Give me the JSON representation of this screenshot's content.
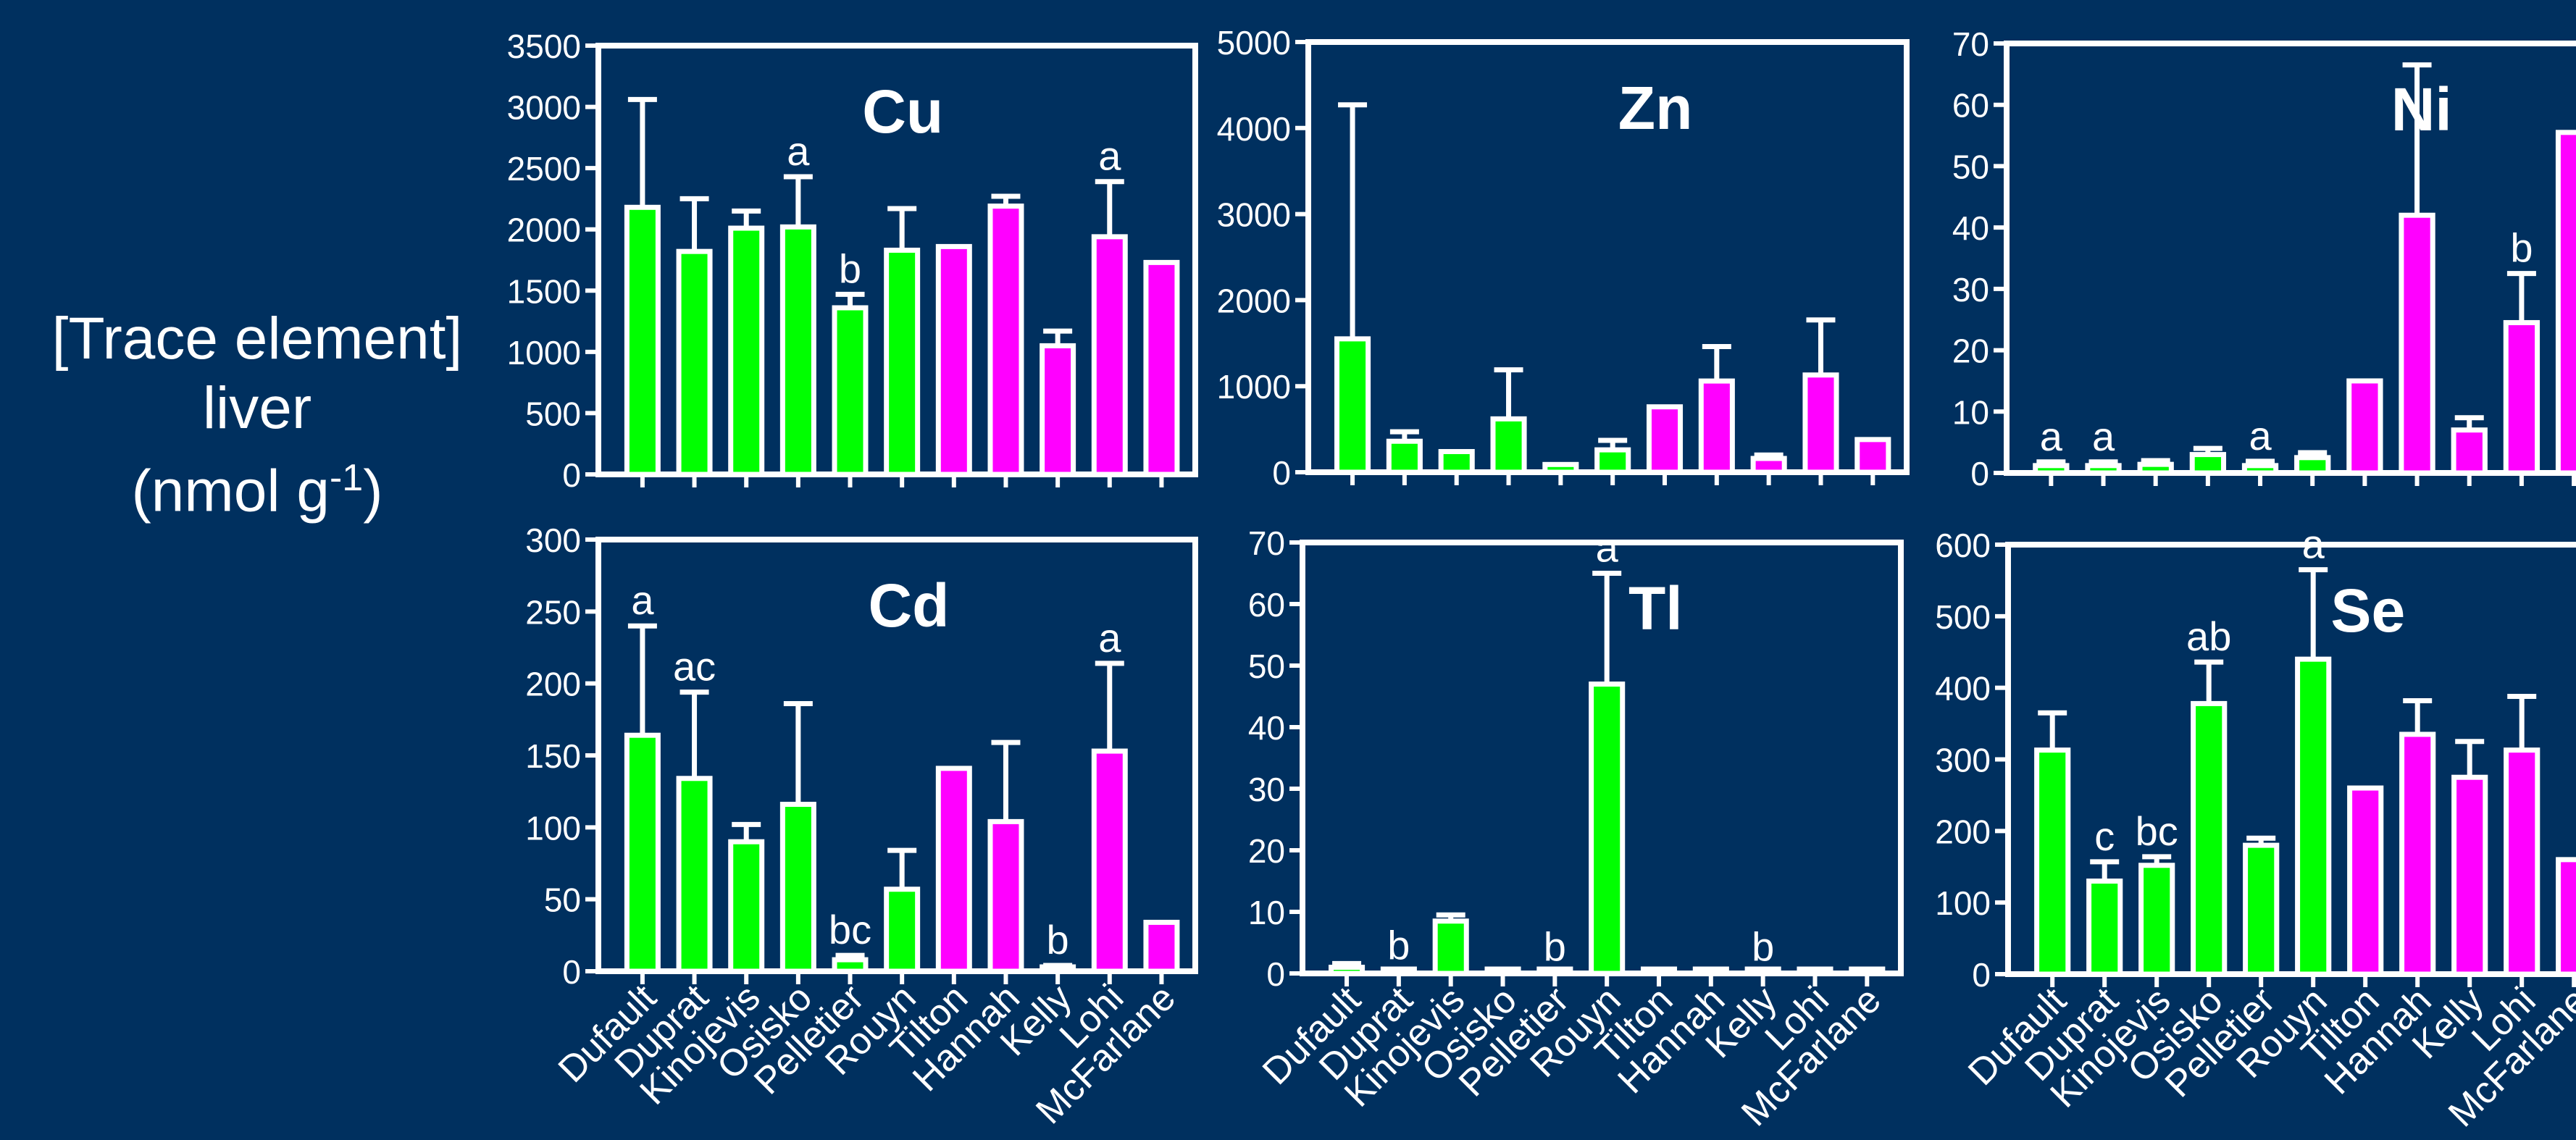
{
  "y_axis_label": {
    "line1": "[Trace element]",
    "line2": "liver",
    "line3_pre": "(nmol g",
    "line3_sup": "-1",
    "line3_post": ")"
  },
  "colors": {
    "background": "#00305f",
    "group_a": "#00ff00",
    "group_b": "#ff00ff",
    "axis": "#ffffff"
  },
  "chart_data": [
    {
      "type": "bar",
      "title": "Cu",
      "categories": [
        "Dufault",
        "Duprat",
        "Kinojevis",
        "Osisko",
        "Pelletier",
        "Rouyn",
        "Tilton",
        "Hannah",
        "Kelly",
        "Lohi",
        "McFarlane"
      ],
      "values": [
        2180,
        1820,
        2010,
        2020,
        1360,
        1830,
        1860,
        2190,
        1050,
        1940,
        1730
      ],
      "errors": [
        880,
        430,
        140,
        410,
        110,
        340,
        0,
        80,
        120,
        450,
        0
      ],
      "letters": [
        "",
        "",
        "",
        "a",
        "b",
        "",
        "",
        "",
        "",
        "a",
        ""
      ],
      "bar_colors": [
        "green",
        "green",
        "green",
        "green",
        "green",
        "green",
        "magenta",
        "magenta",
        "magenta",
        "magenta",
        "magenta"
      ],
      "ylim": [
        0,
        3500
      ],
      "yticks": [
        0,
        500,
        1000,
        1500,
        2000,
        2500,
        3000,
        3500
      ],
      "xlabel": "",
      "ylabel": ""
    },
    {
      "type": "bar",
      "title": "Zn",
      "categories": [
        "Dufault",
        "Duprat",
        "Kinojevis",
        "Osisko",
        "Pelletier",
        "Rouyn",
        "Tilton",
        "Hannah",
        "Kelly",
        "Lohi",
        "McFarlane"
      ],
      "values": [
        1550,
        360,
        240,
        620,
        90,
        260,
        760,
        1060,
        160,
        1130,
        380
      ],
      "errors": [
        2720,
        110,
        0,
        570,
        0,
        110,
        0,
        400,
        40,
        640,
        0
      ],
      "letters": [
        "",
        "",
        "",
        "",
        "",
        "",
        "",
        "",
        "",
        "",
        ""
      ],
      "bar_colors": [
        "green",
        "green",
        "green",
        "green",
        "green",
        "green",
        "magenta",
        "magenta",
        "magenta",
        "magenta",
        "magenta"
      ],
      "ylim": [
        0,
        5000
      ],
      "yticks": [
        0,
        1000,
        2000,
        3000,
        4000,
        5000
      ],
      "xlabel": "",
      "ylabel": ""
    },
    {
      "type": "bar",
      "title": "Ni",
      "categories": [
        "Dufault",
        "Duprat",
        "Kinojevis",
        "Osisko",
        "Pelletier",
        "Rouyn",
        "Tilton",
        "Hannah",
        "Kelly",
        "Lohi",
        "McFarlane"
      ],
      "values": [
        1.2,
        1.2,
        1.4,
        3,
        1.2,
        2.5,
        15,
        42,
        7,
        24.5,
        55.5
      ],
      "errors": [
        0.6,
        0.6,
        0.6,
        1,
        0.7,
        0.8,
        0,
        24.5,
        2,
        8,
        0
      ],
      "letters": [
        "a",
        "a",
        "",
        "",
        "a",
        "",
        "",
        "",
        "",
        "b",
        ""
      ],
      "bar_colors": [
        "green",
        "green",
        "green",
        "green",
        "green",
        "green",
        "magenta",
        "magenta",
        "magenta",
        "magenta",
        "magenta"
      ],
      "ylim": [
        0,
        70
      ],
      "yticks": [
        0,
        10,
        20,
        30,
        40,
        50,
        60,
        70
      ],
      "xlabel": "",
      "ylabel": ""
    },
    {
      "type": "bar",
      "title": "Cd",
      "categories": [
        "Dufault",
        "Duprat",
        "Kinojevis",
        "Osisko",
        "Pelletier",
        "Rouyn",
        "Tilton",
        "Hannah",
        "Kelly",
        "Lohi",
        "McFarlane"
      ],
      "values": [
        164,
        134,
        90,
        116,
        8,
        57,
        141,
        104,
        3,
        153,
        34
      ],
      "errors": [
        76,
        60,
        12,
        70,
        3,
        27,
        0,
        55,
        1,
        61,
        0
      ],
      "letters": [
        "a",
        "ac",
        "",
        "",
        "bc",
        "",
        "",
        "",
        "b",
        "a",
        ""
      ],
      "bar_colors": [
        "green",
        "green",
        "green",
        "green",
        "green",
        "green",
        "magenta",
        "magenta",
        "magenta",
        "magenta",
        "magenta"
      ],
      "ylim": [
        0,
        300
      ],
      "yticks": [
        0,
        50,
        100,
        150,
        200,
        250,
        300
      ],
      "xlabel": "",
      "ylabel": ""
    },
    {
      "type": "bar",
      "title": "Tl",
      "categories": [
        "Dufault",
        "Duprat",
        "Kinojevis",
        "Osisko",
        "Pelletier",
        "Rouyn",
        "Tilton",
        "Hannah",
        "Kelly",
        "Lohi",
        "McFarlane"
      ],
      "values": [
        1,
        0.4,
        8.5,
        0.6,
        0.2,
        47,
        0.6,
        0.6,
        0.2,
        0.6,
        0.4
      ],
      "errors": [
        0.6,
        0,
        1,
        0,
        0,
        18,
        0,
        0,
        0,
        0,
        0
      ],
      "letters": [
        "",
        "b",
        "",
        "",
        "b",
        "a",
        "",
        "",
        "b",
        "",
        ""
      ],
      "bar_colors": [
        "green",
        "green",
        "green",
        "green",
        "green",
        "green",
        "magenta",
        "magenta",
        "magenta",
        "magenta",
        "magenta"
      ],
      "ylim": [
        0,
        70
      ],
      "yticks": [
        0,
        10,
        20,
        30,
        40,
        50,
        60,
        70
      ],
      "xlabel": "",
      "ylabel": ""
    },
    {
      "type": "bar",
      "title": "Se",
      "categories": [
        "Dufault",
        "Duprat",
        "Kinojevis",
        "Osisko",
        "Pelletier",
        "Rouyn",
        "Tilton",
        "Hannah",
        "Kelly",
        "Lohi",
        "McFarlane"
      ],
      "values": [
        313,
        130,
        152,
        378,
        180,
        440,
        260,
        335,
        275,
        313,
        160
      ],
      "errors": [
        52,
        27,
        12,
        58,
        10,
        125,
        0,
        47,
        50,
        75,
        0
      ],
      "letters": [
        "",
        "c",
        "bc",
        "ab",
        "",
        "a",
        "",
        "",
        "",
        "",
        ""
      ],
      "bar_colors": [
        "green",
        "green",
        "green",
        "green",
        "green",
        "green",
        "magenta",
        "magenta",
        "magenta",
        "magenta",
        "magenta"
      ],
      "ylim": [
        0,
        600
      ],
      "yticks": [
        0,
        100,
        200,
        300,
        400,
        500,
        600
      ],
      "xlabel": "",
      "ylabel": ""
    }
  ]
}
